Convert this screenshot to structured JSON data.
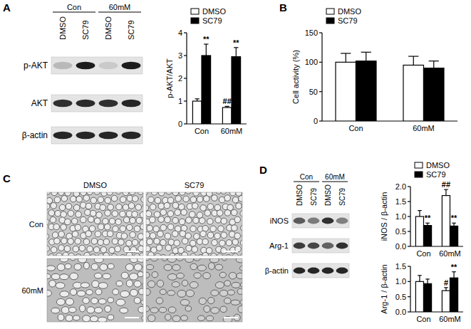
{
  "panel_letters": [
    "A",
    "B",
    "C",
    "D"
  ],
  "chart_data": [
    {
      "type": "bar",
      "ylabel": "p-AKT/AKT",
      "categories": [
        "Con",
        "60mM"
      ],
      "ylim": [
        0,
        4
      ],
      "yticks": [
        0,
        1,
        2,
        3,
        4
      ],
      "legend": "top",
      "series": [
        {
          "name": "DMSO",
          "color": "#ffffff",
          "values": [
            1.0,
            0.72
          ],
          "errors": [
            0.1,
            0.05
          ],
          "annotations": [
            null,
            "##"
          ]
        },
        {
          "name": "SC79",
          "color": "#000000",
          "values": [
            3.0,
            2.95
          ],
          "errors": [
            0.5,
            0.4
          ],
          "annotations": [
            "**",
            "**"
          ]
        }
      ]
    },
    {
      "type": "bar",
      "ylabel": "Cell activity (%)",
      "categories": [
        "Con",
        "60mM"
      ],
      "ylim": [
        0,
        150
      ],
      "yticks": [
        0,
        50,
        100,
        150
      ],
      "legend": "top",
      "series": [
        {
          "name": "DMSO",
          "color": "#ffffff",
          "values": [
            100,
            95
          ],
          "errors": [
            15,
            15
          ]
        },
        {
          "name": "SC79",
          "color": "#000000",
          "values": [
            102,
            90
          ],
          "errors": [
            15,
            12
          ]
        }
      ]
    },
    {
      "type": "bar",
      "ylabel": "iNOS / β-actin",
      "categories": [
        "Con",
        "60mM"
      ],
      "ylim": [
        0,
        2
      ],
      "yticks": [
        {
          "value": 0,
          "label": "0.0"
        },
        {
          "value": 0.5,
          "label": "0.5"
        },
        {
          "value": 1,
          "label": "1.0"
        },
        {
          "value": 1.5,
          "label": "1.5"
        },
        {
          "value": 2,
          "label": "2.0"
        }
      ],
      "legend": "top",
      "series": [
        {
          "name": "DMSO",
          "color": "#ffffff",
          "values": [
            1.0,
            1.7
          ],
          "errors": [
            0.2,
            0.2
          ],
          "annotations": [
            null,
            "##"
          ]
        },
        {
          "name": "SC79",
          "color": "#000000",
          "values": [
            0.7,
            0.68
          ],
          "errors": [
            0.08,
            0.1
          ],
          "annotations": [
            "**",
            "**"
          ]
        }
      ]
    },
    {
      "type": "bar",
      "ylabel": "Arg-1 / β-actin",
      "categories": [
        "Con",
        "60mM"
      ],
      "ylim": [
        0,
        1.5
      ],
      "yticks": [
        {
          "value": 0,
          "label": "0.0"
        },
        {
          "value": 0.5,
          "label": "0.5"
        },
        {
          "value": 1,
          "label": "1.0"
        },
        {
          "value": 1.5,
          "label": "1.5"
        }
      ],
      "series": [
        {
          "color": "#ffffff",
          "values": [
            1.0,
            0.7
          ],
          "errors": [
            0.2,
            0.1
          ],
          "annotations": [
            null,
            "#"
          ]
        },
        {
          "color": "#000000",
          "values": [
            0.93,
            1.12
          ],
          "errors": [
            0.15,
            0.2
          ],
          "annotations": [
            null,
            "**"
          ]
        }
      ]
    }
  ],
  "blots": [
    {
      "groups": [
        "Con",
        "60mM"
      ],
      "lanes": [
        "DMSO",
        "SC79",
        "DMSO",
        "SC79"
      ],
      "rows": [
        "p-AKT",
        "AKT",
        "β-actin"
      ]
    },
    {
      "groups": [
        "Con",
        "60mM"
      ],
      "lanes": [
        "DMSO",
        "SC79",
        "DMSO",
        "SC79"
      ],
      "rows": [
        "iNOS",
        "Arg-1",
        "β-actin"
      ]
    }
  ],
  "micrographs": {
    "columns": [
      "DMSO",
      "SC79"
    ],
    "rows": [
      "Con",
      "60mM"
    ]
  }
}
